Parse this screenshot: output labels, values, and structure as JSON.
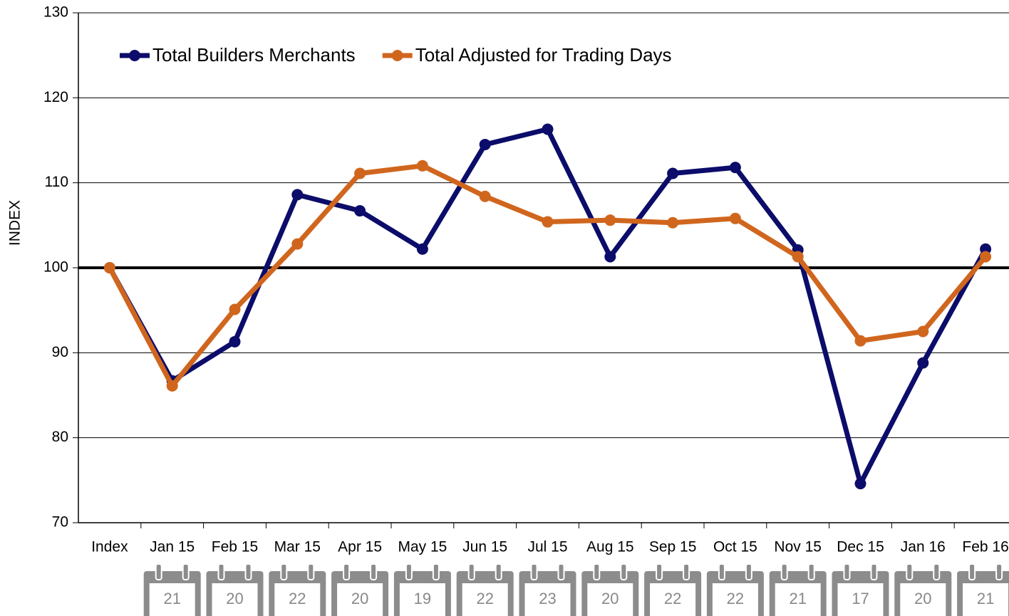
{
  "chart_data": {
    "type": "line",
    "y_label": "INDEX",
    "categories": [
      "Index",
      "Jan 15",
      "Feb 15",
      "Mar 15",
      "Apr 15",
      "May 15",
      "Jun 15",
      "Jul 15",
      "Aug 15",
      "Sep 15",
      "Oct 15",
      "Nov 15",
      "Dec 15",
      "Jan 16",
      "Feb 16"
    ],
    "series": [
      {
        "name": "Total Builders Merchants",
        "color": "#0c0c6a",
        "values": [
          100,
          86.7,
          91.3,
          108.6,
          106.7,
          102.2,
          114.5,
          116.3,
          101.3,
          111.1,
          111.8,
          102.1,
          74.6,
          88.8,
          102.2
        ]
      },
      {
        "name": "Total Adjusted for Trading Days",
        "color": "#d0661e",
        "values": [
          100,
          86.1,
          95.1,
          102.8,
          111.1,
          112.0,
          108.4,
          105.4,
          105.6,
          105.3,
          105.8,
          101.3,
          91.4,
          92.5,
          101.3
        ]
      }
    ],
    "trading_days": [
      21,
      20,
      22,
      20,
      19,
      22,
      23,
      20,
      22,
      22,
      21,
      17,
      20,
      21
    ],
    "reference_line": 100,
    "ylim": [
      70,
      130
    ],
    "yticks": [
      70,
      80,
      90,
      100,
      110,
      120,
      130
    ],
    "grid": true,
    "legend": "top-left"
  }
}
